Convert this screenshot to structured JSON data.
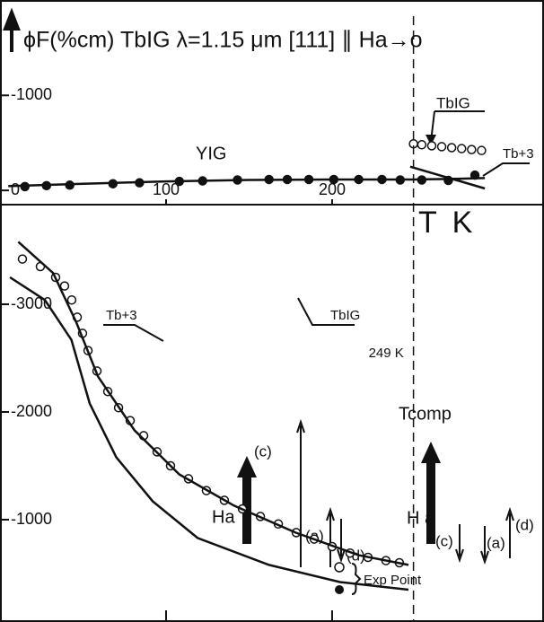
{
  "chart_data": [
    {
      "type": "scatter",
      "title": "ϕF(%cm)  TbIG  λ=1.15 μm  [111] ∥ Ha→o",
      "xlim": [
        0,
        327.6
      ],
      "ylim": [
        150,
        -1900
      ],
      "xticks": [
        100,
        200
      ],
      "yticks": [
        0,
        -1000
      ],
      "series": [
        {
          "name": "YIG",
          "marker": "filled",
          "color": "#111",
          "x": [
            15,
            28,
            42,
            68,
            84,
            108,
            122,
            143,
            162,
            173,
            186,
            201,
            216,
            230,
            241,
            254,
            270,
            286
          ],
          "values": [
            -40,
            -50,
            -55,
            -70,
            -80,
            -95,
            -100,
            -110,
            -115,
            -115,
            -115,
            -115,
            -115,
            -115,
            -110,
            -110,
            -105,
            -160
          ]
        },
        {
          "name": "YIG",
          "marker": "none",
          "color": "#111",
          "x": [
            5,
            50,
            100,
            150,
            200,
            249,
            270,
            292
          ],
          "values": [
            -45,
            -70,
            -95,
            -110,
            -115,
            -115,
            -120,
            -130
          ]
        },
        {
          "name": "TbIG",
          "marker": "open",
          "color": "#111",
          "x": [
            249,
            254,
            260,
            266,
            272,
            278,
            284,
            290
          ],
          "values": [
            -490,
            -480,
            -470,
            -460,
            -450,
            -440,
            -430,
            -420
          ]
        },
        {
          "name": "Tb+3",
          "marker": "none",
          "color": "#111",
          "x": [
            247,
            292
          ],
          "values": [
            -250,
            -20
          ]
        }
      ]
    },
    {
      "type": "scatter",
      "xlim": [
        0,
        327.6
      ],
      "ylim": [
        -50,
        -3925
      ],
      "yticks": [
        -1000,
        -2000,
        -3000
      ],
      "tcomp": {
        "x": 249,
        "label": "249 K"
      },
      "series": [
        {
          "name": "TbIG",
          "marker": "open",
          "color": "#111",
          "x": [
            13.5,
            24.3,
            33.5,
            38.9,
            43.2,
            46.5,
            49.7,
            53,
            58.4,
            64.9,
            71.4,
            78.4,
            86.5,
            94.6,
            102.7,
            113.5,
            124.3,
            135.1,
            146,
            156.8,
            167.6,
            178.4,
            189.2,
            200,
            210.8,
            221.6,
            232.4,
            240.5
          ],
          "values": [
            -3420,
            -3350,
            -3250,
            -3170,
            -3040,
            -2880,
            -2730,
            -2570,
            -2380,
            -2190,
            -2040,
            -1920,
            -1780,
            -1630,
            -1500,
            -1380,
            -1270,
            -1180,
            -1100,
            -1030,
            -960,
            -880,
            -820,
            -750,
            -690,
            -650,
            -620,
            -600
          ]
        },
        {
          "name": "Tb+3",
          "marker": "none",
          "color": "#111",
          "x": [
            6,
            27,
            43,
            54,
            70,
            92,
            119,
            162,
            205,
            246
          ],
          "values": [
            -3250,
            -3040,
            -2670,
            -2080,
            -1580,
            -1170,
            -830,
            -580,
            -420,
            -350
          ]
        },
        {
          "name": "TbIG",
          "marker": "none",
          "color": "#111",
          "x": [
            11,
            32,
            46,
            59,
            81,
            108,
            141,
            178,
            216,
            246
          ],
          "values": [
            -3580,
            -3290,
            -2830,
            -2330,
            -1830,
            -1420,
            -1130,
            -880,
            -670,
            -580
          ]
        }
      ]
    }
  ],
  "annotations": [
    "YIG",
    "TbIG",
    "Tb+3",
    "T K",
    "Tb+3",
    "TbIG",
    "Tcomp",
    "Ha",
    "(c)",
    "(a)",
    "(d)",
    "H a",
    "(c)",
    "(a)",
    "(d)",
    "Exp Point"
  ]
}
